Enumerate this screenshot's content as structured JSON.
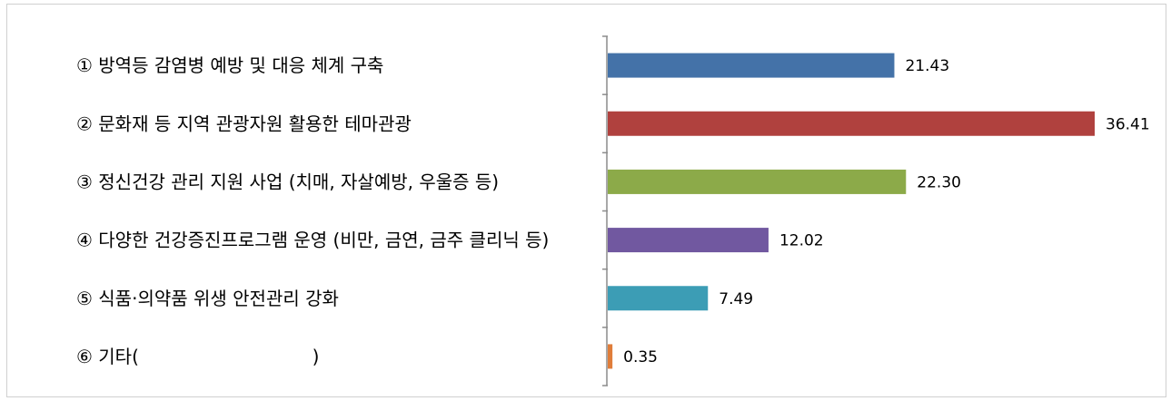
{
  "chart_data": {
    "type": "bar",
    "orientation": "horizontal",
    "categories": [
      "① 방역등 감염병 예방 및 대응 체계 구축",
      "② 문화재 등 지역 관광자원 활용한 테마관광",
      "③ 정신건강 관리 지원 사업 (치매, 자살예방, 우울증 등)",
      "④ 다양한 건강증진프로그램 운영 (비만, 금연, 금주 클리닉 등)",
      "⑤ 식품·의약품 위생 안전관리 강화",
      "⑥ 기타(                              )"
    ],
    "values": [
      21.43,
      36.41,
      22.3,
      12.02,
      7.49,
      0.35
    ],
    "value_labels": [
      "21.43",
      "36.41",
      "22.30",
      "12.02",
      "7.49",
      "0.35"
    ],
    "colors": [
      "#4472A8",
      "#B0413E",
      "#8CAA49",
      "#7158A0",
      "#3C9DB5",
      "#E07D3A"
    ],
    "xlim": [
      0,
      36.41
    ],
    "grid": false,
    "legend": "none"
  }
}
